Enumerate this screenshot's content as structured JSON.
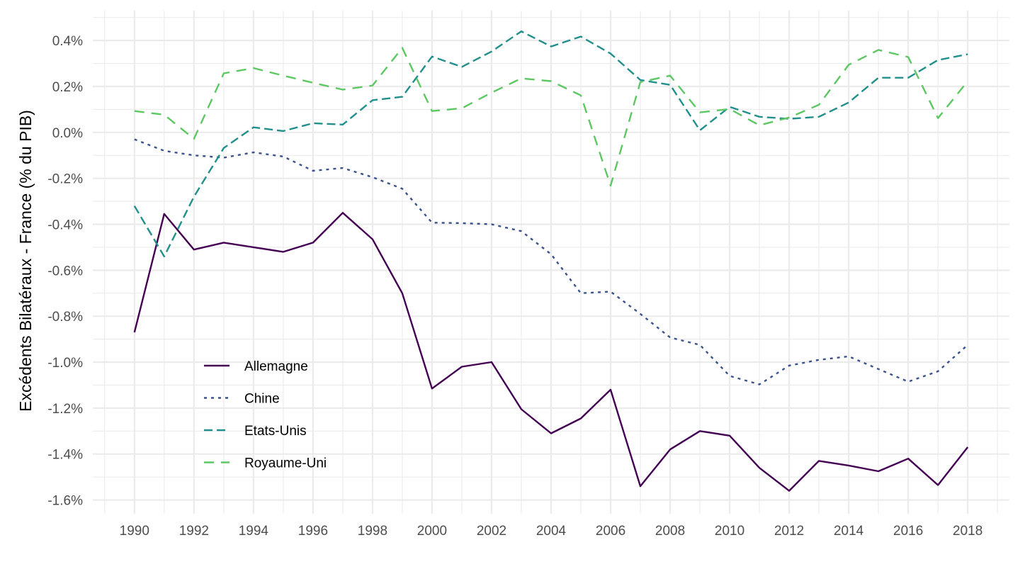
{
  "chart_data": {
    "type": "line",
    "title": "",
    "xlabel": "",
    "ylabel": "Excédents Bilatéraux - France (% du PIB)",
    "x": [
      1990,
      1991,
      1992,
      1993,
      1994,
      1995,
      1996,
      1997,
      1998,
      1999,
      2000,
      2001,
      2002,
      2003,
      2004,
      2005,
      2006,
      2007,
      2008,
      2009,
      2010,
      2011,
      2012,
      2013,
      2014,
      2015,
      2016,
      2017,
      2018
    ],
    "xlim": [
      1988.6,
      2019.4
    ],
    "ylim": [
      -1.66,
      0.53
    ],
    "x_ticks": [
      1990,
      1992,
      1994,
      1996,
      1998,
      2000,
      2002,
      2004,
      2006,
      2008,
      2010,
      2012,
      2014,
      2016,
      2018
    ],
    "x_tick_labels": [
      "1990",
      "1992",
      "1994",
      "1996",
      "1998",
      "2000",
      "2002",
      "2004",
      "2006",
      "2008",
      "2010",
      "2012",
      "2014",
      "2016",
      "2018"
    ],
    "y_ticks": [
      0.4,
      0.2,
      0.0,
      -0.2,
      -0.4,
      -0.6,
      -0.8,
      -1.0,
      -1.2,
      -1.4,
      -1.6
    ],
    "y_tick_labels": [
      "0.4%",
      "0.2%",
      "0.0%",
      "-0.2%",
      "-0.4%",
      "-0.6%",
      "-0.8%",
      "-1.0%",
      "-1.2%",
      "-1.4%",
      "-1.6%"
    ],
    "grid": true,
    "legend_position": "bottom-left inside",
    "series": [
      {
        "name": "Allemagne",
        "color": "#440154",
        "linetype": "solid",
        "values": [
          -0.87,
          -0.355,
          -0.51,
          -0.48,
          -0.5,
          -0.52,
          -0.48,
          -0.35,
          -0.465,
          -0.7,
          -1.115,
          -1.02,
          -1.0,
          -1.205,
          -1.31,
          -1.245,
          -1.12,
          -1.54,
          -1.38,
          -1.3,
          -1.32,
          -1.46,
          -1.56,
          -1.43,
          -1.45,
          -1.475,
          -1.42,
          -1.535,
          -1.37
        ]
      },
      {
        "name": "Chine",
        "color": "#3B528B",
        "linetype": "dotted",
        "values": [
          -0.03,
          -0.08,
          -0.1,
          -0.11,
          -0.087,
          -0.105,
          -0.167,
          -0.155,
          -0.195,
          -0.245,
          -0.393,
          -0.395,
          -0.4,
          -0.43,
          -0.53,
          -0.7,
          -0.693,
          -0.79,
          -0.893,
          -0.925,
          -1.06,
          -1.097,
          -1.015,
          -0.99,
          -0.975,
          -1.03,
          -1.085,
          -1.04,
          -0.925
        ]
      },
      {
        "name": "Etats-Unis",
        "color": "#21908C",
        "linetype": "dashed",
        "values": [
          -0.32,
          -0.54,
          -0.28,
          -0.068,
          0.022,
          0.006,
          0.04,
          0.034,
          0.14,
          0.155,
          0.33,
          0.285,
          0.352,
          0.44,
          0.374,
          0.417,
          0.343,
          0.228,
          0.207,
          0.009,
          0.111,
          0.068,
          0.059,
          0.068,
          0.13,
          0.238,
          0.238,
          0.315,
          0.34
        ]
      },
      {
        "name": "Royaume-Uni",
        "color": "#5DC863",
        "linetype": "longdash",
        "values": [
          0.093,
          0.077,
          -0.028,
          0.257,
          0.28,
          0.247,
          0.216,
          0.186,
          0.204,
          0.368,
          0.093,
          0.105,
          0.173,
          0.235,
          0.223,
          0.161,
          -0.232,
          0.219,
          0.247,
          0.087,
          0.102,
          0.031,
          0.065,
          0.12,
          0.294,
          0.359,
          0.328,
          0.062,
          0.223
        ]
      }
    ]
  }
}
